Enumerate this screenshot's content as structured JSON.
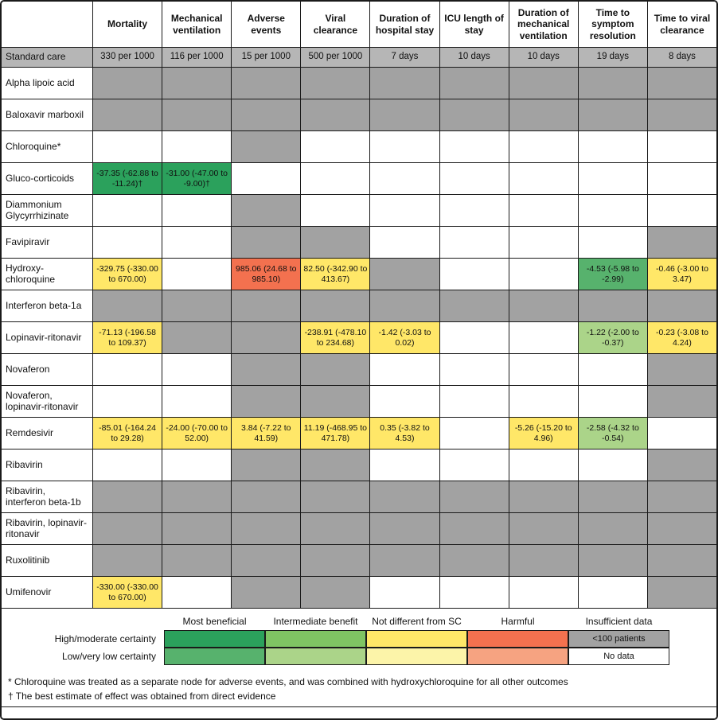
{
  "colors": {
    "insufficient": "#a2a2a2",
    "no_data": "#ffffff",
    "standard_care_bg": "#b6b6b6",
    "mb_high": "#2ba15c",
    "mb_low": "#57b26d",
    "ib_high": "#7fc463",
    "ib_low": "#abd489",
    "nd_high": "#ffe768",
    "nd_low": "#fcf4a9",
    "harm_high": "#f3714f",
    "harm_low": "#f6a381"
  },
  "chart_data": {
    "type": "heatmap",
    "cell_encoding": {
      "G": "<100 patients (insufficient data)",
      "W": "No data"
    },
    "columns": [
      "Mortality",
      "Mechanical ventilation",
      "Adverse events",
      "Viral clearance",
      "Duration of hospital stay",
      "ICU length of stay",
      "Duration of mechanical ventilation",
      "Time to symptom resolution",
      "Time to viral clearance"
    ],
    "standard_care": {
      "label": "Standard care",
      "values": [
        "330 per 1000",
        "116 per 1000",
        "15 per 1000",
        "500 per 1000",
        "7 days",
        "10 days",
        "10 days",
        "19 days",
        "8 days"
      ]
    },
    "rows": [
      {
        "label": "Alpha lipoic acid",
        "cells": [
          "G",
          "G",
          "G",
          "G",
          "G",
          "G",
          "G",
          "G",
          "G"
        ]
      },
      {
        "label": "Baloxavir marboxil",
        "cells": [
          "G",
          "G",
          "G",
          "G",
          "G",
          "G",
          "G",
          "G",
          "G"
        ]
      },
      {
        "label": "Chloroquine*",
        "cells": [
          "W",
          "W",
          "G",
          "W",
          "W",
          "W",
          "W",
          "W",
          "W"
        ]
      },
      {
        "label": "Gluco-corticoids",
        "cells": [
          {
            "t": "-37.35 (-62.88 to -11.24)†",
            "c": "mb_high"
          },
          {
            "t": "-31.00 (-47.00 to -9.00)†",
            "c": "mb_high"
          },
          "W",
          "W",
          "W",
          "W",
          "W",
          "W",
          "W"
        ]
      },
      {
        "label": "Diammonium Glycyrrhizinate",
        "cells": [
          "W",
          "W",
          "G",
          "W",
          "W",
          "W",
          "W",
          "W",
          "W"
        ]
      },
      {
        "label": "Favipiravir",
        "cells": [
          "W",
          "W",
          "G",
          "G",
          "W",
          "W",
          "W",
          "W",
          "G"
        ]
      },
      {
        "label": "Hydroxy-chloroquine",
        "cells": [
          {
            "t": "-329.75 (-330.00 to 670.00)",
            "c": "nd_high"
          },
          "W",
          {
            "t": "985.06 (24.68 to 985.10)",
            "c": "harm_high"
          },
          {
            "t": "82.50 (-342.90 to 413.67)",
            "c": "nd_high"
          },
          "G",
          "W",
          "W",
          {
            "t": "-4.53 (-5.98 to -2.99)",
            "c": "mb_low"
          },
          {
            "t": "-0.46 (-3.00 to 3.47)",
            "c": "nd_high"
          }
        ]
      },
      {
        "label": "Interferon beta-1a",
        "cells": [
          "G",
          "G",
          "G",
          "G",
          "G",
          "G",
          "G",
          "G",
          "G"
        ]
      },
      {
        "label": "Lopinavir-ritonavir",
        "cells": [
          {
            "t": "-71.13 (-196.58 to 109.37)",
            "c": "nd_high"
          },
          "G",
          "G",
          {
            "t": "-238.91 (-478.10 to 234.68)",
            "c": "nd_high"
          },
          {
            "t": "-1.42 (-3.03 to 0.02)",
            "c": "nd_high"
          },
          "W",
          "W",
          {
            "t": "-1.22 (-2.00 to -0.37)",
            "c": "ib_low"
          },
          {
            "t": "-0.23 (-3.08 to 4.24)",
            "c": "nd_high"
          }
        ]
      },
      {
        "label": "Novaferon",
        "cells": [
          "W",
          "W",
          "G",
          "G",
          "W",
          "W",
          "W",
          "W",
          "G"
        ]
      },
      {
        "label": "Novaferon, lopinavir-ritonavir",
        "cells": [
          "W",
          "W",
          "G",
          "G",
          "W",
          "W",
          "W",
          "W",
          "G"
        ]
      },
      {
        "label": "Remdesivir",
        "cells": [
          {
            "t": "-85.01 (-164.24 to 29.28)",
            "c": "nd_high"
          },
          {
            "t": "-24.00 (-70.00 to 52.00)",
            "c": "nd_high"
          },
          {
            "t": "3.84 (-7.22 to 41.59)",
            "c": "nd_high"
          },
          {
            "t": "11.19 (-468.95 to 471.78)",
            "c": "nd_high"
          },
          {
            "t": "0.35 (-3.82 to 4.53)",
            "c": "nd_high"
          },
          "W",
          {
            "t": "-5.26 (-15.20 to 4.96)",
            "c": "nd_high"
          },
          {
            "t": "-2.58 (-4.32 to -0.54)",
            "c": "ib_low"
          },
          "W"
        ]
      },
      {
        "label": "Ribavirin",
        "cells": [
          "W",
          "W",
          "G",
          "G",
          "W",
          "W",
          "W",
          "W",
          "G"
        ]
      },
      {
        "label": "Ribavirin, interferon beta-1b",
        "cells": [
          "G",
          "G",
          "G",
          "G",
          "G",
          "G",
          "G",
          "G",
          "G"
        ]
      },
      {
        "label": "Ribavirin, lopinavir-ritonavir",
        "cells": [
          "G",
          "G",
          "G",
          "G",
          "G",
          "G",
          "G",
          "G",
          "G"
        ]
      },
      {
        "label": "Ruxolitinib",
        "cells": [
          "G",
          "G",
          "G",
          "G",
          "G",
          "G",
          "G",
          "G",
          "G"
        ]
      },
      {
        "label": "Umifenovir",
        "cells": [
          {
            "t": "-330.00 (-330.00 to 670.00)",
            "c": "nd_high"
          },
          "W",
          "G",
          "G",
          "W",
          "W",
          "W",
          "W",
          "G"
        ]
      }
    ]
  },
  "legend": {
    "categories": [
      "Most beneficial",
      "Intermediate benefit",
      "Not different from SC",
      "Harmful",
      "Insufficient data"
    ],
    "rows": [
      {
        "label": "High/moderate certainty",
        "cells": [
          {
            "c": "mb_high"
          },
          {
            "c": "ib_high"
          },
          {
            "c": "nd_high"
          },
          {
            "c": "harm_high"
          },
          {
            "c": "insufficient",
            "t": "<100 patients"
          }
        ]
      },
      {
        "label": "Low/very low certainty",
        "cells": [
          {
            "c": "mb_low"
          },
          {
            "c": "ib_low"
          },
          {
            "c": "nd_low"
          },
          {
            "c": "harm_low"
          },
          {
            "c": "no_data",
            "t": "No data"
          }
        ]
      }
    ]
  },
  "footnotes": [
    "* Chloroquine was treated as a separate node for adverse events, and was combined with hydroxychloroquine for all other outcomes",
    "† The best estimate of effect was obtained from direct evidence"
  ]
}
